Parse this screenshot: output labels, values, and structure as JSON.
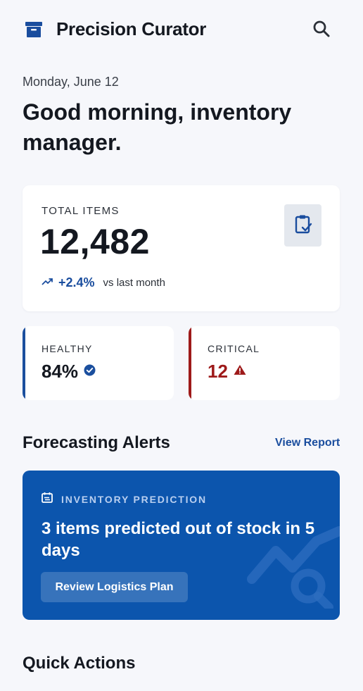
{
  "header": {
    "title": "Precision Curator",
    "brand_icon": "archive-box-icon",
    "search_icon": "search-icon"
  },
  "greeting": {
    "date": "Monday, June 12",
    "message": "Good morning, inventory manager."
  },
  "total_card": {
    "label": "TOTAL ITEMS",
    "value": "12,482",
    "trend_value": "+2.4%",
    "trend_caption": "vs last month",
    "trend_icon": "trending-up-icon",
    "badge_icon": "clipboard-check-icon"
  },
  "stats": {
    "healthy": {
      "label": "HEALTHY",
      "value": "84%",
      "icon": "verified-check-icon",
      "color": "#1b4f9e"
    },
    "critical": {
      "label": "CRITICAL",
      "value": "12",
      "icon": "warning-triangle-icon",
      "color": "#9e1a1a"
    }
  },
  "forecasting": {
    "title": "Forecasting Alerts",
    "link_label": "View Report",
    "card": {
      "label": "INVENTORY PREDICTION",
      "headline": "3 items predicted out of stock in 5 days",
      "button_label": "Review Logistics Plan",
      "icon": "calendar-swap-icon",
      "background_color": "#0c55ad"
    }
  },
  "quick_actions": {
    "title": "Quick Actions"
  },
  "colors": {
    "accent": "#1a4d9e",
    "critical": "#9e1a1a",
    "background": "#f6f7fb"
  }
}
